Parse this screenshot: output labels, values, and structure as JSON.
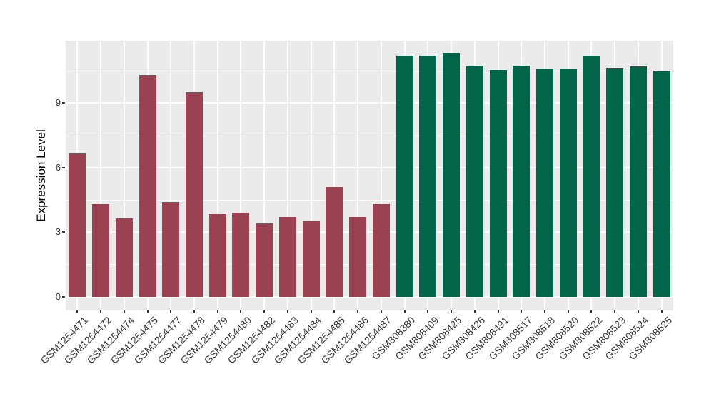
{
  "chart_data": {
    "type": "bar",
    "title": "",
    "xlabel": "",
    "ylabel": "Expression Level",
    "yticks": [
      0,
      3,
      6,
      9
    ],
    "minor_gridlines": [
      1.5,
      4.5,
      7.5,
      10.5
    ],
    "ylim": [
      -0.65,
      11.89
    ],
    "grid": "on",
    "legend_position": "none",
    "panel_background": "#EBEBEB",
    "gridline_color": "#FFFFFF",
    "axis_text_color": "#383838",
    "series": [
      {
        "color": "#9A4152",
        "bars": [
          {
            "label": "GSM1254471",
            "value": 6.65
          },
          {
            "label": "GSM1254472",
            "value": 4.3
          },
          {
            "label": "GSM1254474",
            "value": 3.65
          },
          {
            "label": "GSM1254475",
            "value": 10.3
          },
          {
            "label": "GSM1254477",
            "value": 4.4
          },
          {
            "label": "GSM1254478",
            "value": 9.5
          },
          {
            "label": "GSM1254479",
            "value": 3.85
          },
          {
            "label": "GSM1254480",
            "value": 3.9
          },
          {
            "label": "GSM1254482",
            "value": 3.4
          },
          {
            "label": "GSM1254483",
            "value": 3.7
          },
          {
            "label": "GSM1254484",
            "value": 3.55
          },
          {
            "label": "GSM1254485",
            "value": 5.1
          },
          {
            "label": "GSM1254486",
            "value": 3.7
          },
          {
            "label": "GSM1254487",
            "value": 4.3
          }
        ]
      },
      {
        "color": "#026549",
        "bars": [
          {
            "label": "GSM808380",
            "value": 11.2
          },
          {
            "label": "GSM808409",
            "value": 11.2
          },
          {
            "label": "GSM808425",
            "value": 11.35
          },
          {
            "label": "GSM808426",
            "value": 10.75
          },
          {
            "label": "GSM808491",
            "value": 10.55
          },
          {
            "label": "GSM808517",
            "value": 10.75
          },
          {
            "label": "GSM808518",
            "value": 10.6
          },
          {
            "label": "GSM808520",
            "value": 10.6
          },
          {
            "label": "GSM808522",
            "value": 11.2
          },
          {
            "label": "GSM808523",
            "value": 10.65
          },
          {
            "label": "GSM808524",
            "value": 10.7
          },
          {
            "label": "GSM808525",
            "value": 10.5
          }
        ]
      }
    ]
  }
}
